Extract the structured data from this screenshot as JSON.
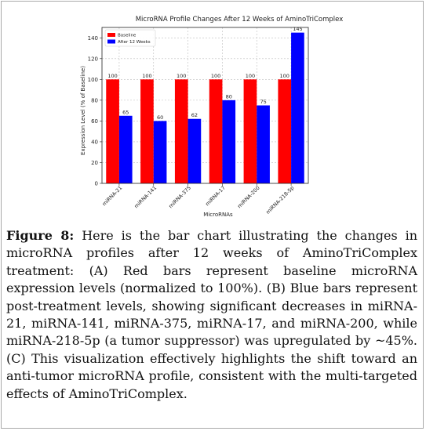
{
  "chart_data": {
    "type": "bar",
    "title": "MicroRNA Profile Changes After 12 Weeks of AminoTriComplex",
    "xlabel": "MicroRNAs",
    "ylabel": "Expression Level (% of Baseline)",
    "categories": [
      "miRNA-21",
      "miRNA-141",
      "miRNA-375",
      "miRNA-17",
      "miRNA-200",
      "miRNA-218-5p"
    ],
    "series": [
      {
        "name": "Baseline",
        "values": [
          100,
          100,
          100,
          100,
          100,
          100
        ],
        "color": "#ff0000"
      },
      {
        "name": "After 12 Weeks",
        "values": [
          65,
          60,
          62,
          80,
          75,
          145
        ],
        "color": "#0000ff"
      }
    ],
    "ylim": [
      0,
      150
    ],
    "yticks": [
      0,
      20,
      40,
      60,
      80,
      100,
      120,
      140
    ],
    "grid": true,
    "legend": "top-left"
  },
  "caption": {
    "label": "Figure 8:",
    "text": " Here is the bar chart illustrating the changes in microRNA profiles after 12 weeks of AminoTriComplex treatment: (A) Red bars represent baseline microRNA expression levels (normalized to 100%). (B) Blue bars represent post-treatment levels, showing significant decreases in miRNA-21, miRNA-141, miRNA-375, miRNA-17, and miRNA-200, while miRNA-218-5p (a tumor suppressor) was upregulated by ~45%. (C) This visualization effectively highlights the shift toward an anti-tumor microRNA profile, consistent with the multi-targeted effects of AminoTriComplex."
  }
}
